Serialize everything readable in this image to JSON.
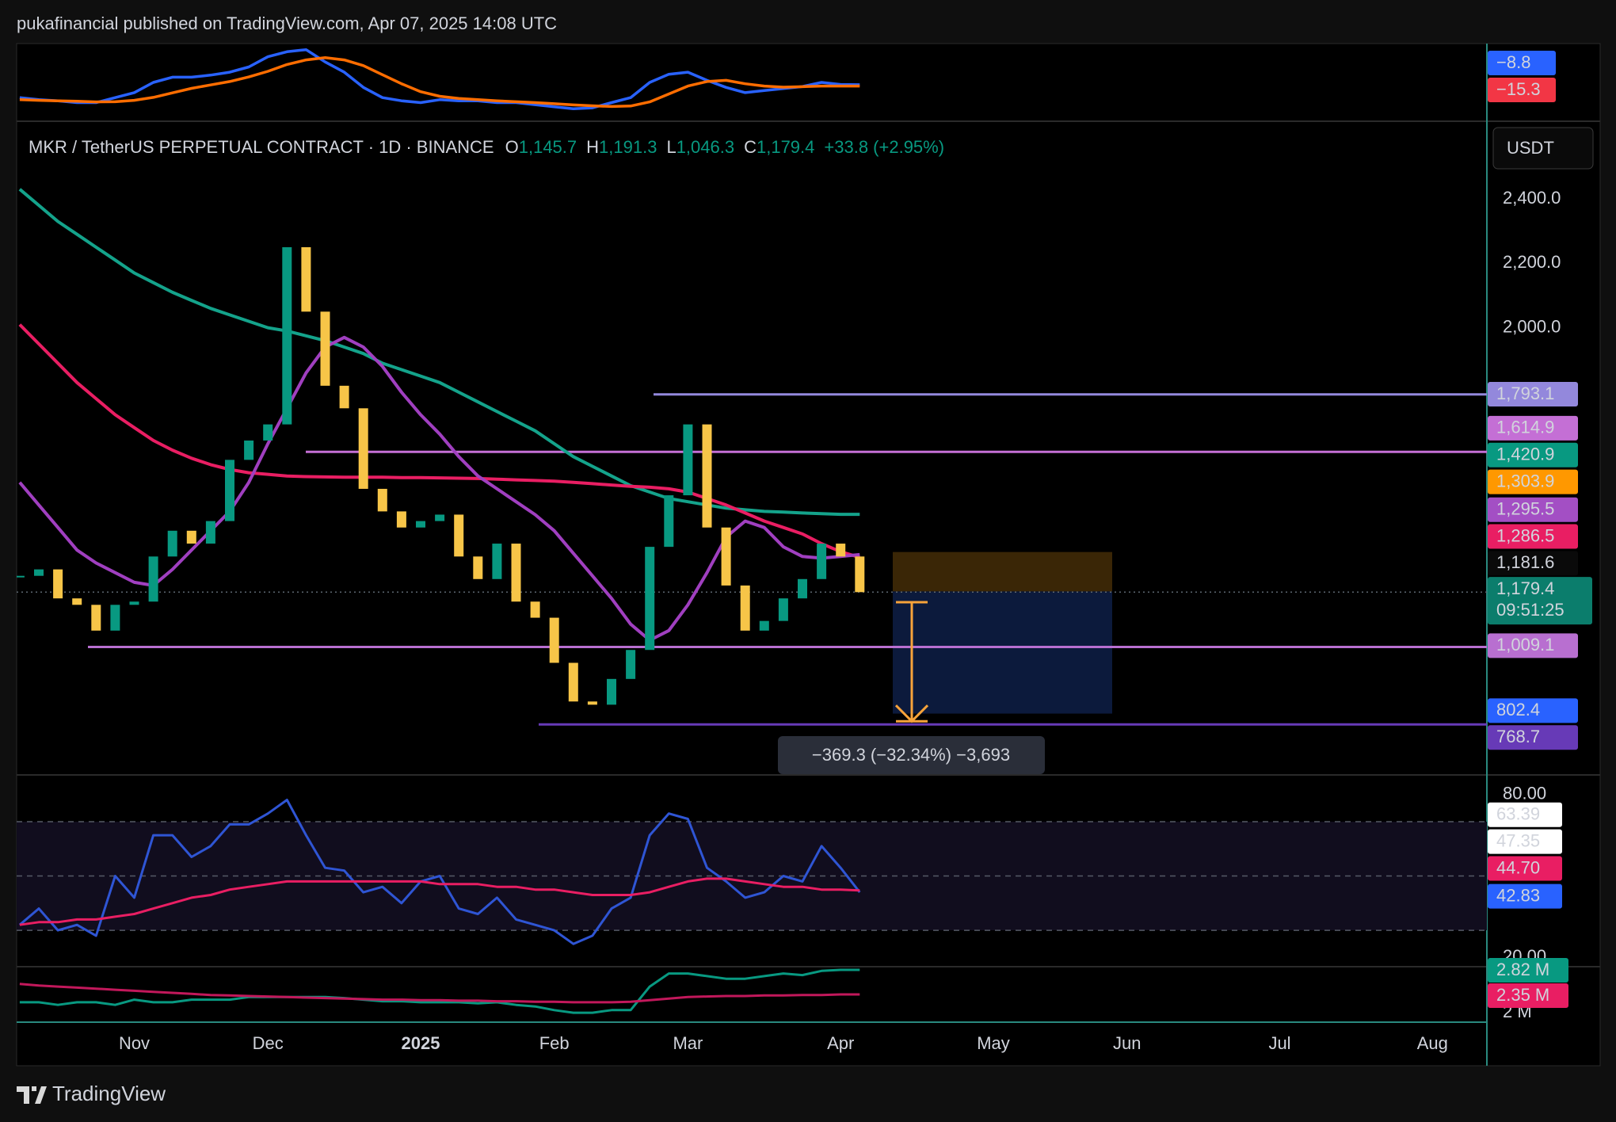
{
  "header": {
    "publisher": "pukafinancial published on TradingView.com, Apr 07, 2025 14:08 UTC"
  },
  "footer": {
    "brand": "TradingView"
  },
  "chart_data": [
    {
      "type": "candlestick",
      "title": "MKR / TetherUS PERPETUAL CONTRACT · 1D · BINANCE",
      "legend_values": [
        {
          "key": "O",
          "value": 1145.7,
          "label": "1,145.7"
        },
        {
          "key": "H",
          "value": 1191.3,
          "label": "1,191.3"
        },
        {
          "key": "L",
          "value": 1046.3,
          "label": "1,046.3"
        },
        {
          "key": "C",
          "value": 1179.4,
          "label": "1,179.4"
        }
      ],
      "change": {
        "value": 33.8,
        "label": "+33.8 (+2.95%)"
      },
      "currency": "USDT",
      "up_color": "#089981",
      "down_color": "#f7c548",
      "categories": [
        null,
        null,
        null,
        null,
        null,
        null,
        "Nov",
        null,
        null,
        null,
        null,
        null,
        null,
        "Dec",
        null,
        null,
        null,
        null,
        null,
        null,
        null,
        "2025",
        null,
        null,
        null,
        null,
        null,
        null,
        "Feb",
        null,
        null,
        null,
        null,
        null,
        null,
        "Mar",
        null,
        null,
        null,
        null,
        null,
        null,
        null,
        "Apr",
        null,
        null,
        null,
        null,
        null,
        null,
        null,
        "May",
        null,
        null,
        null,
        null,
        null,
        null,
        "Jun",
        null,
        null,
        null,
        null,
        null,
        null,
        null,
        "Jul",
        null,
        null,
        null,
        null,
        null,
        null,
        null,
        "Aug",
        null,
        null
      ],
      "close": [
        1230,
        1250,
        1160,
        1140,
        1060,
        1140,
        1150,
        1290,
        1370,
        1330,
        1400,
        1590,
        1650,
        1700,
        2250,
        2050,
        1820,
        1750,
        1500,
        1430,
        1380,
        1400,
        1420,
        1290,
        1220,
        1330,
        1150,
        1100,
        960,
        840,
        830,
        910,
        1000,
        1320,
        1480,
        1700,
        1380,
        1200,
        1060,
        1090,
        1160,
        1220,
        1330,
        1290,
        1179.4,
        null,
        null,
        null,
        null,
        null,
        null,
        null,
        null,
        null,
        null,
        null,
        null,
        null,
        null,
        null,
        null,
        null,
        null,
        null,
        null,
        null,
        null,
        null,
        null,
        null,
        null,
        null,
        null,
        null,
        null,
        null,
        null
      ],
      "moving_averages": [
        {
          "color": "#14a38b",
          "values": [
            2430,
            2380,
            2330,
            2290,
            2250,
            2210,
            2170,
            2140,
            2110,
            2085,
            2060,
            2040,
            2020,
            2000,
            1990,
            1975,
            1960,
            1940,
            1920,
            1890,
            1870,
            1850,
            1830,
            1800,
            1770,
            1740,
            1710,
            1680,
            1640,
            1600,
            1570,
            1540,
            1510,
            1490,
            1470,
            1460,
            1450,
            1440,
            1435,
            1430,
            1428,
            1425,
            1423,
            1421,
            1421,
            null,
            null,
            null,
            null,
            null,
            null,
            null,
            null,
            null,
            null,
            null,
            null,
            null,
            null,
            null,
            null,
            null,
            null,
            null,
            null,
            null,
            null,
            null,
            null,
            null,
            null,
            null,
            null,
            null,
            null,
            null,
            null
          ]
        },
        {
          "color": "#e91e63",
          "values": [
            2010,
            1950,
            1890,
            1830,
            1780,
            1730,
            1690,
            1650,
            1620,
            1595,
            1575,
            1560,
            1550,
            1545,
            1540,
            1538,
            1537,
            1536,
            1536,
            1536,
            1535,
            1535,
            1534,
            1533,
            1532,
            1530,
            1528,
            1526,
            1524,
            1520,
            1516,
            1512,
            1508,
            1505,
            1500,
            1490,
            1470,
            1450,
            1425,
            1400,
            1380,
            1360,
            1330,
            1305,
            1287,
            null,
            null,
            null,
            null,
            null,
            null,
            null,
            null,
            null,
            null,
            null,
            null,
            null,
            null,
            null,
            null,
            null,
            null,
            null,
            null,
            null,
            null,
            null,
            null,
            null,
            null,
            null,
            null,
            null,
            null,
            null,
            null
          ]
        },
        {
          "color": "#a03fc0",
          "values": [
            1520,
            1450,
            1380,
            1310,
            1270,
            1240,
            1210,
            1200,
            1250,
            1310,
            1370,
            1430,
            1520,
            1640,
            1750,
            1860,
            1940,
            1970,
            1940,
            1880,
            1800,
            1730,
            1670,
            1600,
            1540,
            1500,
            1460,
            1420,
            1370,
            1300,
            1230,
            1160,
            1080,
            1030,
            1060,
            1140,
            1240,
            1350,
            1400,
            1380,
            1320,
            1290,
            1285,
            1290,
            1296,
            null,
            null,
            null,
            null,
            null,
            null,
            null,
            null,
            null,
            null,
            null,
            null,
            null,
            null,
            null,
            null,
            null,
            null,
            null,
            null,
            null,
            null,
            null,
            null,
            null,
            null,
            null,
            null,
            null,
            null,
            null,
            null
          ]
        }
      ],
      "ylim": [
        612,
        2641
      ],
      "yticks": [
        {
          "value": 2400,
          "label": "2,400.0"
        },
        {
          "value": 2200,
          "label": "2,200.0"
        },
        {
          "value": 2000,
          "label": "2,000.0"
        }
      ],
      "levels": [
        {
          "value": 1793.1,
          "label": "1,793.1",
          "color": "#9388dc"
        },
        {
          "value": 1614.9,
          "label": "1,614.9",
          "color": "#c46fd5"
        },
        {
          "value": 1009.1,
          "label": "1,009.1",
          "color": "#b86fd0"
        },
        {
          "value": 768.7,
          "label": "768.7",
          "color": "#673ab7"
        }
      ],
      "price_labels": [
        {
          "value": 1420.9,
          "label": "1,420.9",
          "color": "#089981"
        },
        {
          "value": 1303.9,
          "label": "1,303.9",
          "color": "#ff9800"
        },
        {
          "value": 1295.5,
          "label": "1,295.5",
          "color": "#a34fc4"
        },
        {
          "value": 1286.5,
          "label": "1,286.5",
          "color": "#e91e63"
        },
        {
          "value": 1181.6,
          "label": "1,181.6",
          "color": "#0a0a0a"
        },
        {
          "value": 1179.4,
          "label": "1,179.4",
          "color": "#0b7d6c",
          "countdown": "09:51:25"
        },
        {
          "value": 802.4,
          "label": "802.4",
          "color": "#2962ff"
        }
      ],
      "measure": {
        "start": 1148,
        "value": -369.3,
        "label": "−369.3 (−32.34%) −3,693"
      }
    },
    {
      "type": "line",
      "series": [
        {
          "color": "#2962ff",
          "values": [
            -66,
            -75,
            -80,
            -88,
            -88,
            -66,
            -44,
            1,
            24,
            24,
            33,
            46,
            69,
            114,
            136,
            145,
            91,
            46,
            -21,
            -66,
            -80,
            -88,
            -75,
            -80,
            -80,
            -88,
            -88,
            -97,
            -106,
            -115,
            -111,
            -88,
            -66,
            1,
            37,
            46,
            10,
            -21,
            -44,
            -35,
            -26,
            -17,
            1,
            -8,
            -9
          ]
        },
        {
          "color": "#ff6d00",
          "values": [
            -75,
            -78,
            -80,
            -82,
            -85,
            -84,
            -78,
            -65,
            -45,
            -25,
            -10,
            5,
            25,
            50,
            80,
            100,
            110,
            100,
            75,
            35,
            -5,
            -40,
            -60,
            -70,
            -75,
            -80,
            -84,
            -88,
            -93,
            -98,
            -102,
            -105,
            -103,
            -85,
            -50,
            -15,
            5,
            10,
            -5,
            -15,
            -20,
            -18,
            -15,
            -15,
            -15
          ]
        }
      ],
      "ylim": [
        -170,
        172
      ],
      "last_labels": [
        {
          "value": -8.8,
          "label": "−8.8",
          "color": "#2962ff"
        },
        {
          "value": -15.3,
          "label": "−15.3",
          "color": "#f23645"
        }
      ]
    },
    {
      "type": "line",
      "series": [
        {
          "color": "#2f55d4",
          "values": [
            32,
            38,
            30,
            32,
            28,
            50,
            42,
            65,
            65,
            57,
            61,
            69,
            69,
            73,
            78,
            65,
            53,
            52,
            44,
            46,
            40,
            48,
            50,
            38,
            36,
            42,
            34,
            32,
            30,
            25,
            28,
            38,
            42,
            65,
            73,
            71,
            53,
            48,
            42,
            44,
            50,
            48,
            61,
            53,
            44
          ]
        },
        {
          "color": "#e91e63",
          "values": [
            32,
            33,
            33,
            34,
            34,
            35,
            36,
            38,
            40,
            42,
            43,
            45,
            46,
            47,
            48,
            48,
            48,
            48,
            48,
            48,
            48,
            48,
            47,
            47,
            47,
            46,
            46,
            45,
            45,
            44,
            43,
            43,
            43,
            44,
            46,
            48,
            49,
            49,
            48,
            47,
            46,
            46,
            45,
            45,
            44.7
          ]
        }
      ],
      "ylim": [
        16.6,
        87.2
      ],
      "yticks": [
        {
          "value": 80,
          "label": "80.00"
        },
        {
          "value": 20,
          "label": "20.00"
        }
      ],
      "bands": [
        70,
        50,
        30
      ],
      "last_labels": [
        {
          "value": 63.39,
          "label": "63.39",
          "color": "#ffffff",
          "text_color": "#000000"
        },
        {
          "value": 47.35,
          "label": "47.35",
          "color": "#ffffff",
          "text_color": "#000000"
        },
        {
          "value": 44.7,
          "label": "44.70",
          "color": "#e91e63"
        },
        {
          "value": 42.83,
          "label": "42.83",
          "color": "#2962ff"
        }
      ]
    },
    {
      "type": "line",
      "series": [
        {
          "color": "#089981",
          "values": [
            2.2,
            2.2,
            2.15,
            2.2,
            2.2,
            2.15,
            2.25,
            2.2,
            2.2,
            2.25,
            2.25,
            2.25,
            2.3,
            2.3,
            2.3,
            2.3,
            2.3,
            2.28,
            2.25,
            2.22,
            2.22,
            2.2,
            2.2,
            2.2,
            2.18,
            2.2,
            2.15,
            2.12,
            2.05,
            2.0,
            2.0,
            2.05,
            2.05,
            2.5,
            2.75,
            2.75,
            2.7,
            2.65,
            2.65,
            2.7,
            2.75,
            2.72,
            2.8,
            2.82,
            2.82
          ]
        },
        {
          "color": "#c2185b",
          "values": [
            2.55,
            2.52,
            2.5,
            2.48,
            2.46,
            2.44,
            2.42,
            2.4,
            2.38,
            2.36,
            2.34,
            2.33,
            2.32,
            2.31,
            2.3,
            2.29,
            2.28,
            2.27,
            2.26,
            2.25,
            2.25,
            2.24,
            2.24,
            2.23,
            2.23,
            2.22,
            2.22,
            2.21,
            2.21,
            2.2,
            2.2,
            2.2,
            2.21,
            2.24,
            2.27,
            2.3,
            2.31,
            2.32,
            2.32,
            2.33,
            2.33,
            2.34,
            2.34,
            2.35,
            2.35
          ]
        }
      ],
      "ylim": [
        1.82,
        2.88
      ],
      "yticks": [
        {
          "value": 2,
          "label": "2 M"
        }
      ],
      "last_labels": [
        {
          "value": 2.82,
          "label": "2.82 M",
          "color": "#089981"
        },
        {
          "value": 2.35,
          "label": "2.35 M",
          "color": "#e91e63"
        }
      ]
    }
  ]
}
